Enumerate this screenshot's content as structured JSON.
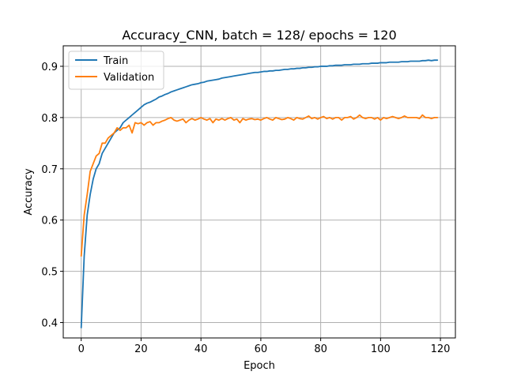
{
  "chart_data": {
    "type": "line",
    "title": "Accuracy_CNN, batch = 128/ epochs = 120",
    "xlabel": "Epoch",
    "ylabel": "Accuracy",
    "xlim": [
      -6,
      125
    ],
    "ylim": [
      0.37,
      0.94
    ],
    "xticks": [
      0,
      20,
      40,
      60,
      80,
      100,
      120
    ],
    "yticks": [
      0.4,
      0.5,
      0.6,
      0.7,
      0.8,
      0.9
    ],
    "ytick_labels": [
      "0.4",
      "0.5",
      "0.6",
      "0.7",
      "0.8",
      "0.9"
    ],
    "grid": true,
    "legend_position": "top-left",
    "series": [
      {
        "name": "Train",
        "color": "#1f77b4",
        "values": [
          0.39,
          0.53,
          0.61,
          0.65,
          0.68,
          0.7,
          0.71,
          0.73,
          0.74,
          0.75,
          0.76,
          0.77,
          0.775,
          0.78,
          0.79,
          0.795,
          0.8,
          0.805,
          0.81,
          0.815,
          0.82,
          0.825,
          0.828,
          0.83,
          0.833,
          0.836,
          0.84,
          0.842,
          0.845,
          0.847,
          0.85,
          0.852,
          0.854,
          0.856,
          0.858,
          0.86,
          0.862,
          0.864,
          0.865,
          0.866,
          0.868,
          0.869,
          0.871,
          0.872,
          0.873,
          0.874,
          0.875,
          0.877,
          0.878,
          0.879,
          0.88,
          0.881,
          0.882,
          0.883,
          0.884,
          0.885,
          0.886,
          0.887,
          0.888,
          0.888,
          0.889,
          0.89,
          0.89,
          0.891,
          0.891,
          0.892,
          0.892,
          0.893,
          0.894,
          0.894,
          0.895,
          0.895,
          0.896,
          0.896,
          0.897,
          0.897,
          0.898,
          0.898,
          0.899,
          0.899,
          0.9,
          0.9,
          0.9,
          0.901,
          0.901,
          0.902,
          0.902,
          0.902,
          0.903,
          0.903,
          0.903,
          0.904,
          0.904,
          0.904,
          0.905,
          0.905,
          0.905,
          0.906,
          0.906,
          0.906,
          0.907,
          0.907,
          0.907,
          0.908,
          0.908,
          0.908,
          0.908,
          0.909,
          0.909,
          0.909,
          0.91,
          0.91,
          0.91,
          0.91,
          0.911,
          0.911,
          0.912,
          0.911,
          0.912,
          0.912
        ]
      },
      {
        "name": "Validation",
        "color": "#ff7f0e",
        "values": [
          0.53,
          0.61,
          0.65,
          0.695,
          0.71,
          0.725,
          0.73,
          0.75,
          0.75,
          0.76,
          0.765,
          0.77,
          0.78,
          0.775,
          0.78,
          0.78,
          0.785,
          0.77,
          0.79,
          0.788,
          0.79,
          0.785,
          0.79,
          0.792,
          0.785,
          0.79,
          0.79,
          0.793,
          0.795,
          0.798,
          0.8,
          0.795,
          0.793,
          0.795,
          0.797,
          0.79,
          0.795,
          0.798,
          0.795,
          0.797,
          0.8,
          0.797,
          0.795,
          0.798,
          0.79,
          0.797,
          0.795,
          0.798,
          0.795,
          0.798,
          0.8,
          0.795,
          0.797,
          0.79,
          0.798,
          0.795,
          0.797,
          0.798,
          0.796,
          0.797,
          0.795,
          0.798,
          0.8,
          0.797,
          0.795,
          0.8,
          0.798,
          0.796,
          0.797,
          0.8,
          0.798,
          0.795,
          0.8,
          0.798,
          0.797,
          0.8,
          0.803,
          0.798,
          0.8,
          0.797,
          0.8,
          0.802,
          0.798,
          0.8,
          0.797,
          0.8,
          0.8,
          0.795,
          0.8,
          0.8,
          0.802,
          0.797,
          0.8,
          0.805,
          0.8,
          0.798,
          0.8,
          0.8,
          0.797,
          0.8,
          0.795,
          0.8,
          0.798,
          0.8,
          0.802,
          0.8,
          0.798,
          0.8,
          0.803,
          0.8,
          0.8,
          0.8,
          0.8,
          0.798,
          0.805,
          0.8,
          0.8,
          0.798,
          0.8,
          0.8
        ]
      }
    ]
  }
}
